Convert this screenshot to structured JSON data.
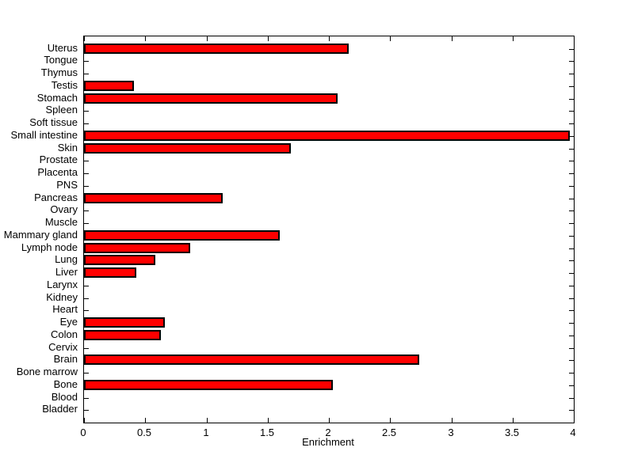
{
  "figure": {
    "background_color": "#ffffff",
    "axis_color": "#000000"
  },
  "chart_data": {
    "type": "bar",
    "orientation": "horizontal",
    "title": "",
    "xlabel": "Enrichment",
    "ylabel": "",
    "xlim": [
      0,
      4
    ],
    "grid": false,
    "legend": "none",
    "bar_color": "#ff0000",
    "bar_edge_color": "#000000",
    "xtick_labels": [
      "0",
      "0.5",
      "1",
      "1.5",
      "2",
      "2.5",
      "3",
      "3.5",
      "4"
    ],
    "xtick_values": [
      0,
      0.5,
      1,
      1.5,
      2,
      2.5,
      3,
      3.5,
      4
    ],
    "categories": [
      "Uterus",
      "Tongue",
      "Thymus",
      "Testis",
      "Stomach",
      "Spleen",
      "Soft tissue",
      "Small intestine",
      "Skin",
      "Prostate",
      "Placenta",
      "PNS",
      "Pancreas",
      "Ovary",
      "Muscle",
      "Mammary gland",
      "Lymph node",
      "Lung",
      "Liver",
      "Larynx",
      "Kidney",
      "Heart",
      "Eye",
      "Colon",
      "Cervix",
      "Brain",
      "Bone marrow",
      "Bone",
      "Blood",
      "Bladder"
    ],
    "values": [
      2.16,
      0,
      0,
      0.41,
      2.07,
      0,
      0,
      3.97,
      1.69,
      0,
      0,
      0,
      1.13,
      0,
      0,
      1.6,
      0.87,
      0.58,
      0.43,
      0,
      0,
      0,
      0.66,
      0.63,
      0,
      2.74,
      0,
      2.03,
      0,
      0
    ]
  }
}
